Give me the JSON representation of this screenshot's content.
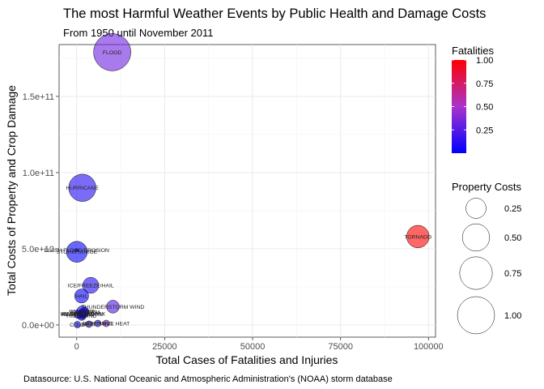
{
  "chart_data": {
    "type": "scatter",
    "title": "The most Harmful Weather Events by Public Health and Damage Costs",
    "subtitle": "From 1950 until November 2011",
    "caption": "Datasource: U.S. National Oceanic and Atmospheric Administration's (NOAA) storm database",
    "xlabel": "Total Cases of Fatalities and Injuries",
    "ylabel": "Total Costs of Property and Crop Damage",
    "xlim": [
      -5000,
      102000
    ],
    "ylim": [
      -8000000000,
      184000000000
    ],
    "x_ticks": [
      {
        "value": 0,
        "label": "0"
      },
      {
        "value": 25000,
        "label": "25000"
      },
      {
        "value": 50000,
        "label": "50000"
      },
      {
        "value": 75000,
        "label": "75000"
      },
      {
        "value": 100000,
        "label": "100000"
      }
    ],
    "y_ticks": [
      {
        "value": 0,
        "label": "0.0e+00"
      },
      {
        "value": 50000000000,
        "label": "5.0e+10"
      },
      {
        "value": 100000000000,
        "label": "1.0e+11"
      },
      {
        "value": 150000000000,
        "label": "1.5e+11"
      }
    ],
    "grid": true,
    "legend_color": {
      "title": "Fatalities",
      "ticks": [
        {
          "value": 0.25,
          "label": "0.25"
        },
        {
          "value": 0.5,
          "label": "0.50"
        },
        {
          "value": 0.75,
          "label": "0.75"
        },
        {
          "value": 1.0,
          "label": "1.00"
        }
      ],
      "low_color": "#0000FF",
      "high_color": "#FF0000",
      "range": [
        0.0,
        1.0
      ]
    },
    "legend_size": {
      "title": "Property Costs",
      "ticks": [
        {
          "value": 0.25,
          "label": "0.25"
        },
        {
          "value": 0.5,
          "label": "0.50"
        },
        {
          "value": 0.75,
          "label": "0.75"
        },
        {
          "value": 1.0,
          "label": "1.00"
        }
      ]
    },
    "points": [
      {
        "label": "FLOOD",
        "x": 10100,
        "y": 179000000000,
        "fatalities": 0.33,
        "size": 1.0
      },
      {
        "label": "HURRICANE",
        "x": 1600,
        "y": 90000000000,
        "fatalities": 0.1,
        "size": 0.5
      },
      {
        "label": "TORNADO",
        "x": 97000,
        "y": 58000000000,
        "fatalities": 1.0,
        "size": 0.32
      },
      {
        "label": "STORM SURGE",
        "x": 50,
        "y": 48000000000,
        "fatalities": 0.02,
        "size": 0.27
      },
      {
        "label": "FLASH FLOOD/EROSION",
        "x": 0,
        "y": 49000000000,
        "fatalities": 0.01,
        "size": 0.0
      },
      {
        "label": "HAIL",
        "x": 1400,
        "y": 19000000000,
        "fatalities": 0.02,
        "size": 0.1
      },
      {
        "label": "ICE/FREEZE/HAIL",
        "x": 4000,
        "y": 26000000000,
        "fatalities": 0.1,
        "size": 0.14
      },
      {
        "label": "THUNDERSTORM WIND",
        "x": 10300,
        "y": 12000000000,
        "fatalities": 0.25,
        "size": 0.08
      },
      {
        "label": "WILDFIRE",
        "x": 1600,
        "y": 9000000000,
        "fatalities": 0.02,
        "size": 0.05
      },
      {
        "label": "HIGH WIND",
        "x": 1400,
        "y": 6000000000,
        "fatalities": 0.05,
        "size": 0.03
      },
      {
        "label": "WINTER STORM",
        "x": 1500,
        "y": 7000000000,
        "fatalities": 0.03,
        "size": 0.03
      },
      {
        "label": "RAIN/SNOW/MIX",
        "x": 2000,
        "y": 7500000000,
        "fatalities": 0.05,
        "size": 0.03
      },
      {
        "label": "HEAVY RAIN",
        "x": 300,
        "y": 7000000000,
        "fatalities": 0.02,
        "size": 0.02
      },
      {
        "label": "ICE STORM",
        "x": 2200,
        "y": 8500000000,
        "fatalities": 0.03,
        "size": 0.03
      },
      {
        "label": "EXCESSIVE HEAT",
        "x": 8400,
        "y": 1000000000,
        "fatalities": 0.35,
        "size": 0.01
      },
      {
        "label": "LIGHTNING",
        "x": 6000,
        "y": 1000000000,
        "fatalities": 0.15,
        "size": 0.01
      },
      {
        "label": "HEAT",
        "x": 3500,
        "y": 500000000,
        "fatalities": 0.2,
        "size": 0.01
      },
      {
        "label": "COLD",
        "x": 200,
        "y": 200000000,
        "fatalities": 0.01,
        "size": 0.01
      }
    ]
  }
}
